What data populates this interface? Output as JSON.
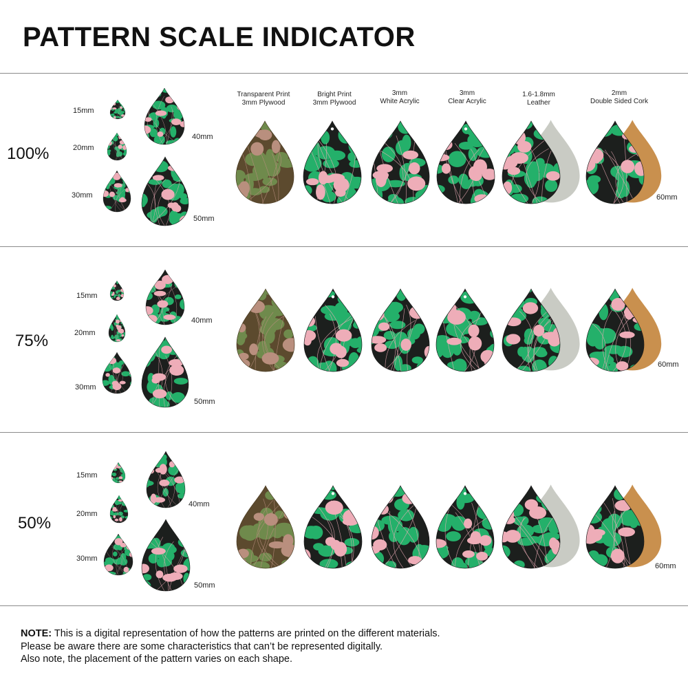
{
  "title": "PATTERN SCALE INDICATOR",
  "colors": {
    "dark": "#1c1f1d",
    "green": "#24b06a",
    "pink": "#eeadb8",
    "wood_dark": "#5c4a2e",
    "wood_green": "#6f8a4c",
    "wood_pink": "#b98f7e",
    "leather": "#c9cbc4",
    "cork": "#c9904e"
  },
  "materials": [
    {
      "line1": "Transparent Print",
      "line2": "3mm Plywood",
      "variant": "plywood-transparent"
    },
    {
      "line1": "Bright Print",
      "line2": "3mm Plywood",
      "variant": "plywood-bright"
    },
    {
      "line1": "3mm",
      "line2": "White Acrylic",
      "variant": "white-acrylic"
    },
    {
      "line1": "3mm",
      "line2": "Clear Acrylic",
      "variant": "clear-acrylic"
    },
    {
      "line1": "1.6-1.8mm",
      "line2": "Leather",
      "variant": "leather"
    },
    {
      "line1": "2mm",
      "line2": "Double Sided Cork",
      "variant": "cork"
    }
  ],
  "sections": [
    {
      "scale": "100%",
      "sizes": {
        "s15": "15mm",
        "s20": "20mm",
        "s30": "30mm",
        "s40": "40mm",
        "s50": "50mm",
        "s60": "60mm"
      }
    },
    {
      "scale": "75%",
      "sizes": {
        "s15": "15mm",
        "s20": "20mm",
        "s30": "30mm",
        "s40": "40mm",
        "s50": "50mm",
        "s60": "60mm"
      }
    },
    {
      "scale": "50%",
      "sizes": {
        "s15": "15mm",
        "s20": "20mm",
        "s30": "30mm",
        "s40": "40mm",
        "s50": "50mm",
        "s60": "60mm"
      }
    }
  ],
  "note": {
    "label": "NOTE:",
    "line1": " This is a digital representation of how the patterns are printed on the different materials.",
    "line2": "Please be aware there are some characteristics that can’t be represented digitally.",
    "line3": "Also note, the placement of the pattern varies on each shape."
  }
}
